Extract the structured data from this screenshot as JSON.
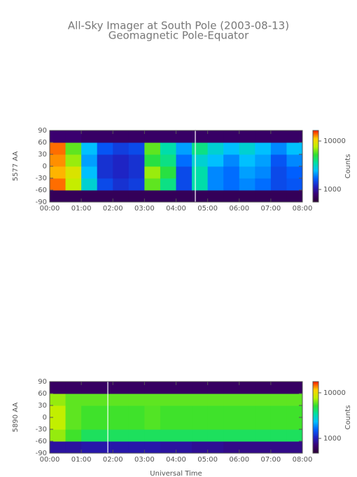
{
  "title": "All-Sky Imager at South Pole (2003-08-13)",
  "subtitle": "Geomagnetic Pole-Equator",
  "chart_data": [
    {
      "type": "heatmap",
      "ylabel": "5577 AA",
      "xlim": [
        0,
        8
      ],
      "xticks": [
        {
          "value": 0,
          "label": "00:00"
        },
        {
          "value": 1,
          "label": "01:00"
        },
        {
          "value": 2,
          "label": "02:00"
        },
        {
          "value": 3,
          "label": "03:00"
        },
        {
          "value": 4,
          "label": "04:00"
        },
        {
          "value": 5,
          "label": "05:00"
        },
        {
          "value": 6,
          "label": "06:00"
        },
        {
          "value": 7,
          "label": "07:00"
        },
        {
          "value": 8,
          "label": "08:00"
        }
      ],
      "ylim": [
        -90,
        90
      ],
      "yticks": [
        -90,
        -60,
        -30,
        0,
        30,
        60,
        90
      ],
      "xbins": [
        0,
        0.5,
        1,
        1.5,
        2,
        2.5,
        3,
        3.5,
        4,
        4.5,
        5,
        5.5,
        6,
        6.5,
        7,
        7.5,
        8
      ],
      "ybins": [
        -90,
        -60,
        -30,
        0,
        30,
        60,
        90
      ],
      "z": [
        [
          700,
          700,
          700,
          700,
          700,
          700,
          700,
          700,
          700,
          700,
          700,
          700,
          700,
          700,
          700,
          700
        ],
        [
          14000,
          8000,
          3000,
          1500,
          1300,
          1400,
          6000,
          4000,
          1500,
          3500,
          2000,
          1800,
          2000,
          1800,
          1500,
          1600
        ],
        [
          12000,
          9000,
          2500,
          1300,
          1200,
          1300,
          7000,
          5000,
          1500,
          3500,
          2000,
          1800,
          2200,
          2000,
          1500,
          1700
        ],
        [
          13000,
          7000,
          2200,
          1300,
          1200,
          1300,
          5000,
          4000,
          1800,
          3000,
          2500,
          2000,
          2500,
          2200,
          1600,
          2000
        ],
        [
          14000,
          6000,
          2500,
          1600,
          1400,
          1500,
          6000,
          3500,
          2200,
          4000,
          3000,
          2500,
          3000,
          2500,
          2000,
          2500
        ],
        [
          800,
          800,
          750,
          750,
          750,
          750,
          750,
          750,
          750,
          750,
          750,
          750,
          750,
          750,
          750,
          750
        ]
      ],
      "clim": [
        550,
        16500
      ],
      "cticks": [
        1000,
        10000
      ],
      "clabel": "Counts",
      "colormap": [
        "#2a0030",
        "#3a0070",
        "#2020c0",
        "#0060ff",
        "#00c0ff",
        "#00e0a0",
        "#30e030",
        "#c0f000",
        "#ffd000",
        "#ff2000"
      ],
      "cursor_x": 4.61
    },
    {
      "type": "heatmap",
      "ylabel": "5890 AA",
      "xlabel": "Universal Time",
      "xlim": [
        0,
        8
      ],
      "xticks": [
        {
          "value": 0,
          "label": "00:00"
        },
        {
          "value": 1,
          "label": "01:00"
        },
        {
          "value": 2,
          "label": "02:00"
        },
        {
          "value": 3,
          "label": "03:00"
        },
        {
          "value": 4,
          "label": "04:00"
        },
        {
          "value": 5,
          "label": "05:00"
        },
        {
          "value": 6,
          "label": "06:00"
        },
        {
          "value": 7,
          "label": "07:00"
        },
        {
          "value": 8,
          "label": "08:00"
        }
      ],
      "ylim": [
        -90,
        90
      ],
      "yticks": [
        -90,
        -60,
        -30,
        0,
        30,
        60,
        90
      ],
      "xbins": [
        0,
        0.5,
        1,
        1.5,
        2,
        2.5,
        3,
        3.5,
        4,
        4.5,
        5,
        5.5,
        6,
        6.5,
        7,
        7.5,
        8
      ],
      "ybins": [
        -90,
        -60,
        -30,
        0,
        30,
        60,
        90
      ],
      "z": [
        [
          900,
          900,
          950,
          950,
          950,
          950,
          950,
          900,
          900,
          850,
          850,
          800,
          800,
          800,
          800,
          800
        ],
        [
          7000,
          5500,
          4500,
          4500,
          4500,
          4500,
          4500,
          4500,
          4500,
          4500,
          4500,
          4500,
          4500,
          4500,
          4500,
          4500
        ],
        [
          8000,
          6000,
          5500,
          5500,
          5500,
          5500,
          5800,
          5500,
          5500,
          5500,
          5500,
          5500,
          5500,
          5500,
          5500,
          5500
        ],
        [
          8000,
          6000,
          5500,
          5500,
          5500,
          5500,
          5800,
          5500,
          5500,
          5500,
          5500,
          5500,
          5500,
          5500,
          5500,
          5500
        ],
        [
          7000,
          6000,
          6000,
          6000,
          6000,
          6000,
          6000,
          6000,
          6000,
          6000,
          6000,
          6000,
          6000,
          6000,
          6000,
          6000
        ],
        [
          650,
          650,
          650,
          650,
          650,
          650,
          650,
          650,
          650,
          650,
          650,
          650,
          650,
          650,
          650,
          650
        ]
      ],
      "clim": [
        475,
        17600
      ],
      "cticks": [
        1000,
        10000
      ],
      "clabel": "Counts",
      "colormap": [
        "#2a0030",
        "#3a0070",
        "#2020c0",
        "#0060ff",
        "#00c0ff",
        "#00e0a0",
        "#30e030",
        "#c0f000",
        "#ffd000",
        "#ff2000"
      ],
      "cursor_x": 1.84
    }
  ]
}
